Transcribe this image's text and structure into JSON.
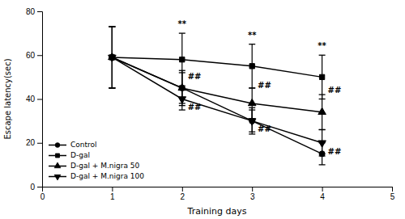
{
  "chart_data": {
    "type": "line",
    "x": [
      1,
      2,
      3,
      4
    ],
    "xlabel": "Training days",
    "ylabel": "Escape latency(sec)",
    "xlim": [
      0,
      5
    ],
    "ylim": [
      0,
      80
    ],
    "xticks": [
      0,
      1,
      2,
      3,
      4,
      5
    ],
    "yticks": [
      0,
      20,
      40,
      60,
      80
    ],
    "grid": false,
    "legend": "lower left",
    "series": [
      {
        "name": "Control",
        "color": "#000000",
        "marker": "circle",
        "values": [
          59,
          45,
          30,
          15
        ],
        "yerr": [
          14,
          8,
          6,
          5
        ]
      },
      {
        "name": "D-gal",
        "color": "#000000",
        "marker": "square",
        "values": [
          59,
          58,
          55,
          50
        ],
        "yerr": [
          14,
          12,
          10,
          10
        ]
      },
      {
        "name": "D-gal + M.nigra 50",
        "color": "#000000",
        "marker": "triangle-up",
        "values": [
          59,
          45,
          38,
          34
        ],
        "yerr": [
          14,
          7,
          7,
          8
        ]
      },
      {
        "name": "D-gal + M.nigra 100",
        "color": "#000000",
        "marker": "triangle-down",
        "values": [
          59,
          40,
          30,
          20
        ],
        "yerr": [
          14,
          5,
          5,
          6
        ]
      }
    ],
    "annotations": [
      {
        "x": 2,
        "y": 73,
        "text": "**"
      },
      {
        "x": 3,
        "y": 68,
        "text": "**"
      },
      {
        "x": 4,
        "y": 63,
        "text": "**"
      },
      {
        "x": 2.08,
        "y": 50,
        "text": "##"
      },
      {
        "x": 2.08,
        "y": 36,
        "text": "##"
      },
      {
        "x": 3.08,
        "y": 46,
        "text": "##"
      },
      {
        "x": 3.08,
        "y": 26,
        "text": "##"
      },
      {
        "x": 4.08,
        "y": 44,
        "text": "##"
      },
      {
        "x": 4.08,
        "y": 16,
        "text": "##"
      }
    ]
  }
}
